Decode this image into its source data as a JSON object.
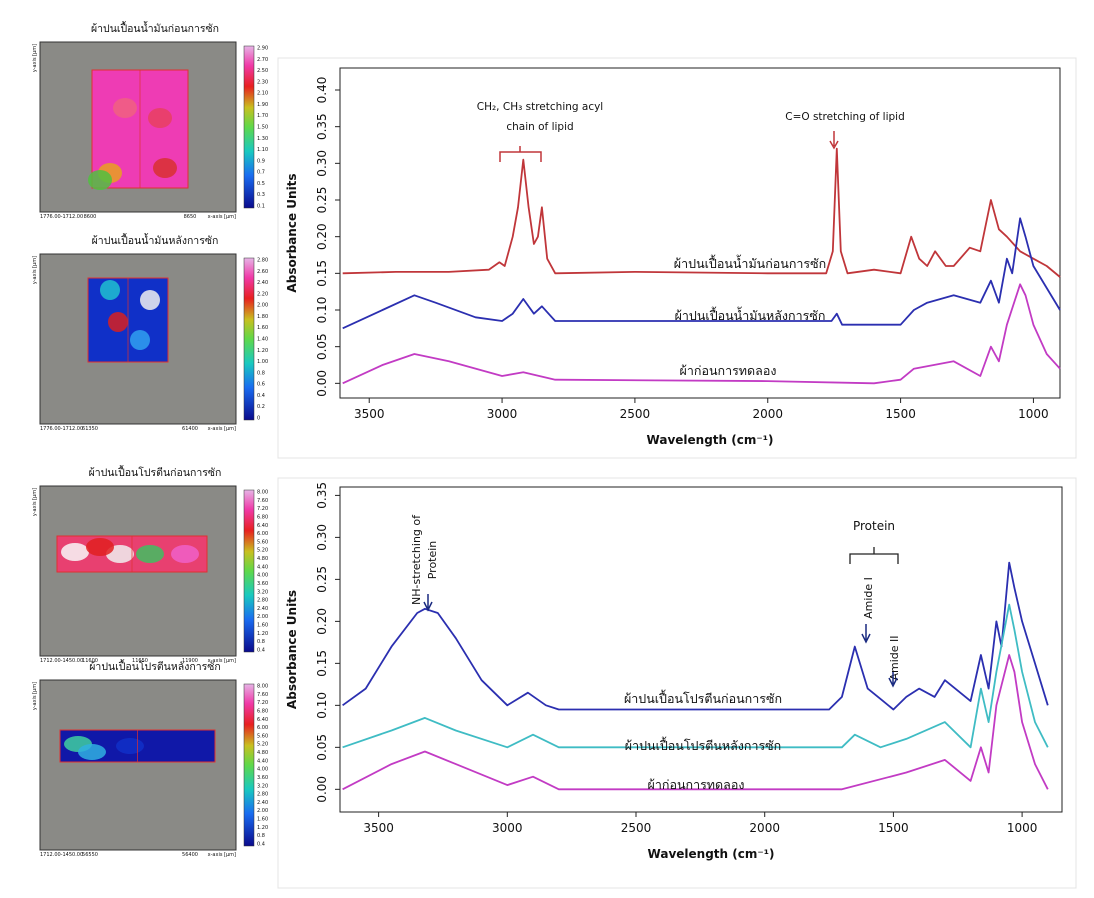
{
  "panels": [
    {
      "title": "ผ้าปนเปื้อนน้ำมันก่อนการซัก",
      "y_label": "y-axis [µm]",
      "x_label": "x-axis [µm]",
      "footer": "1776.00-1712.00",
      "x_ticks": [
        "8600",
        "8650"
      ],
      "colorbar": [
        "2.90",
        "2.70",
        "2.50",
        "2.30",
        "2.10",
        "1.90",
        "1.70",
        "1.50",
        "1.30",
        "1.10",
        "0.9",
        "0.7",
        "0.5",
        "0.3",
        "0.1"
      ]
    },
    {
      "title": "ผ้าปนเปื้อนน้ำมันหลังการซัก",
      "y_label": "y-axis [µm]",
      "x_label": "x-axis [µm]",
      "footer": "1776.00-1712.00",
      "x_ticks": [
        "61350",
        "61400"
      ],
      "colorbar": [
        "2.80",
        "2.60",
        "2.40",
        "2.20",
        "2.00",
        "1.80",
        "1.60",
        "1.40",
        "1.20",
        "1.00",
        "0.8",
        "0.6",
        "0.4",
        "0.2",
        "0"
      ]
    },
    {
      "title": "ผ้าปนเปื้อนโปรตีนก่อนการซัก",
      "y_label": "y-axis [µm]",
      "x_label": "x-axis [µm]",
      "footer": "1712.00-1450.00",
      "x_ticks": [
        "11600",
        "11650",
        "11900"
      ],
      "colorbar": [
        "8.00",
        "7.60",
        "7.20",
        "6.80",
        "6.40",
        "6.00",
        "5.60",
        "5.20",
        "4.80",
        "4.40",
        "4.00",
        "3.60",
        "3.20",
        "2.80",
        "2.40",
        "2.00",
        "1.60",
        "1.20",
        "0.8",
        "0.4"
      ]
    },
    {
      "title": "ผ้าปนเปื้อนโปรตีนหลังการซัก",
      "y_label": "y-axis [µm]",
      "x_label": "x-axis [µm]",
      "footer": "1712.00-1450.00",
      "x_ticks": [
        "56550",
        "56400"
      ],
      "colorbar": [
        "8.00",
        "7.60",
        "7.20",
        "6.80",
        "6.40",
        "6.00",
        "5.60",
        "5.20",
        "4.80",
        "4.40",
        "4.00",
        "3.60",
        "3.20",
        "2.80",
        "2.40",
        "2.00",
        "1.60",
        "1.20",
        "0.8",
        "0.4"
      ]
    }
  ],
  "chart_data": [
    {
      "type": "line",
      "x_label": "Wavelength (cm⁻¹)",
      "y_label": "Absorbance Units",
      "xlim": [
        3610,
        900
      ],
      "ylim": [
        -0.02,
        0.43
      ],
      "xticks": [
        3500,
        3000,
        2500,
        2000,
        1500,
        1000
      ],
      "yticks": [
        {
          "value": 0,
          "label": "0.00"
        },
        {
          "value": 0.05,
          "label": "0.05"
        },
        {
          "value": 0.1,
          "label": "0.10"
        },
        {
          "value": 0.15,
          "label": "0.15"
        },
        {
          "value": 0.2,
          "label": "0.20"
        },
        {
          "value": 0.25,
          "label": "0.25"
        },
        {
          "value": 0.3,
          "label": "0.30"
        },
        {
          "value": 0.35,
          "label": "0.35"
        },
        {
          "value": 0.4,
          "label": "0.40"
        }
      ],
      "annotations": [
        "CH₂, CH₃ stretching acyl",
        "chain of lipid",
        "C=O stretching of lipid"
      ],
      "series": [
        {
          "name": "ผ้าปนเปื้อนน้ำมันก่อนการซัก",
          "color": "#c0363a",
          "x": [
            3600,
            3400,
            3200,
            3050,
            3010,
            2990,
            2960,
            2940,
            2920,
            2900,
            2880,
            2865,
            2850,
            2830,
            2800,
            2500,
            2000,
            1780,
            1755,
            1740,
            1725,
            1700,
            1600,
            1500,
            1460,
            1430,
            1400,
            1370,
            1330,
            1300,
            1240,
            1200,
            1160,
            1130,
            1100,
            1050,
            1000,
            950,
            900
          ],
          "values": [
            0.15,
            0.152,
            0.152,
            0.155,
            0.165,
            0.16,
            0.2,
            0.24,
            0.305,
            0.24,
            0.19,
            0.2,
            0.24,
            0.17,
            0.15,
            0.152,
            0.15,
            0.15,
            0.18,
            0.32,
            0.18,
            0.15,
            0.155,
            0.15,
            0.2,
            0.17,
            0.16,
            0.18,
            0.16,
            0.16,
            0.185,
            0.18,
            0.25,
            0.21,
            0.2,
            0.18,
            0.17,
            0.16,
            0.145
          ]
        },
        {
          "name": "ผ้าปนเปื้อนน้ำมันหลังการซัก",
          "color": "#2b2fb0",
          "x": [
            3600,
            3450,
            3330,
            3250,
            3100,
            3000,
            2960,
            2920,
            2880,
            2850,
            2800,
            2500,
            2000,
            1760,
            1740,
            1720,
            1500,
            1450,
            1400,
            1300,
            1200,
            1160,
            1130,
            1100,
            1080,
            1050,
            1030,
            1000,
            950,
            900
          ],
          "values": [
            0.075,
            0.1,
            0.12,
            0.11,
            0.09,
            0.085,
            0.095,
            0.115,
            0.095,
            0.105,
            0.085,
            0.085,
            0.085,
            0.085,
            0.095,
            0.08,
            0.08,
            0.1,
            0.11,
            0.12,
            0.11,
            0.14,
            0.11,
            0.17,
            0.15,
            0.225,
            0.2,
            0.16,
            0.13,
            0.1
          ]
        },
        {
          "name": "ผ้าก่อนการทดลอง",
          "color": "#c23bc4",
          "x": [
            3600,
            3450,
            3330,
            3200,
            3000,
            2920,
            2800,
            2000,
            1600,
            1500,
            1450,
            1300,
            1200,
            1160,
            1130,
            1100,
            1050,
            1030,
            1000,
            950,
            900
          ],
          "values": [
            0.0,
            0.025,
            0.04,
            0.03,
            0.01,
            0.015,
            0.005,
            0.003,
            0.0,
            0.005,
            0.02,
            0.03,
            0.01,
            0.05,
            0.03,
            0.08,
            0.135,
            0.12,
            0.08,
            0.04,
            0.02
          ]
        }
      ]
    },
    {
      "type": "line",
      "x_label": "Wavelength (cm⁻¹)",
      "y_label": "Absorbance Units",
      "xlim": [
        3650,
        845
      ],
      "ylim": [
        -0.027,
        0.36
      ],
      "xticks": [
        3500,
        3000,
        2500,
        2000,
        1500,
        1000
      ],
      "yticks": [
        {
          "value": 0,
          "label": "0.00"
        },
        {
          "value": 0.05,
          "label": "0.05"
        },
        {
          "value": 0.1,
          "label": "0.10"
        },
        {
          "value": 0.15,
          "label": "0.15"
        },
        {
          "value": 0.2,
          "label": "0.20"
        },
        {
          "value": 0.25,
          "label": "0.25"
        },
        {
          "value": 0.3,
          "label": "0.30"
        },
        {
          "value": 0.35,
          "label": "0.35"
        }
      ],
      "annotations": [
        "NH-stretching of",
        "Protein",
        "Protein",
        "Amide I",
        "Amide II"
      ],
      "series": [
        {
          "name": "ผ้าปนเปื้อนโปรตีนก่อนการซัก",
          "color": "#2b2fb0",
          "x": [
            3640,
            3550,
            3450,
            3350,
            3320,
            3270,
            3200,
            3100,
            3000,
            2920,
            2850,
            2800,
            2000,
            1750,
            1700,
            1650,
            1600,
            1540,
            1500,
            1450,
            1400,
            1340,
            1300,
            1200,
            1160,
            1130,
            1100,
            1080,
            1050,
            1030,
            1000,
            950,
            900
          ],
          "values": [
            0.1,
            0.12,
            0.17,
            0.21,
            0.215,
            0.21,
            0.18,
            0.13,
            0.1,
            0.115,
            0.1,
            0.095,
            0.095,
            0.095,
            0.11,
            0.17,
            0.12,
            0.105,
            0.095,
            0.11,
            0.12,
            0.11,
            0.13,
            0.105,
            0.16,
            0.12,
            0.2,
            0.17,
            0.27,
            0.24,
            0.2,
            0.15,
            0.1
          ]
        },
        {
          "name": "ผ้าปนเปื้อนโปรตีนหลังการซัก",
          "color": "#3fbcc4",
          "x": [
            3640,
            3450,
            3320,
            3200,
            3000,
            2900,
            2800,
            2000,
            1700,
            1650,
            1550,
            1450,
            1300,
            1200,
            1160,
            1130,
            1100,
            1050,
            1030,
            1000,
            950,
            900
          ],
          "values": [
            0.05,
            0.07,
            0.085,
            0.07,
            0.05,
            0.065,
            0.05,
            0.05,
            0.05,
            0.065,
            0.05,
            0.06,
            0.08,
            0.05,
            0.12,
            0.08,
            0.14,
            0.22,
            0.19,
            0.14,
            0.08,
            0.05
          ]
        },
        {
          "name": "ผ้าก่อนการทดลอง",
          "color": "#c23bc4",
          "x": [
            3640,
            3450,
            3320,
            3200,
            3000,
            2900,
            2800,
            1700,
            1450,
            1300,
            1200,
            1160,
            1130,
            1100,
            1050,
            1030,
            1000,
            950,
            900
          ],
          "values": [
            0.0,
            0.03,
            0.045,
            0.03,
            0.005,
            0.015,
            0.0,
            0.0,
            0.02,
            0.035,
            0.01,
            0.05,
            0.02,
            0.1,
            0.16,
            0.14,
            0.08,
            0.03,
            0.0
          ]
        }
      ]
    }
  ]
}
